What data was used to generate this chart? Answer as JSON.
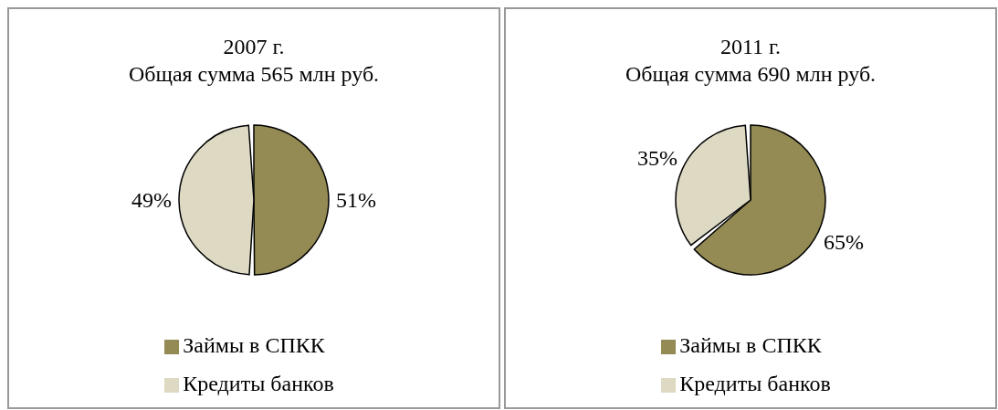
{
  "chart_data": [
    {
      "type": "pie",
      "title": "2007 г.",
      "subtitle": "Общая сумма 565 млн руб.",
      "categories": [
        "Займы в СПКК",
        "Кредиты банков"
      ],
      "values": [
        51,
        49
      ],
      "colors": [
        "#948a54",
        "#ddd9c3"
      ],
      "value_labels": [
        "51%",
        "49%"
      ],
      "legend": "bottom"
    },
    {
      "type": "pie",
      "title": "2011 г.",
      "subtitle": "Общая сумма 690 млн руб.",
      "categories": [
        "Займы в СПКК",
        "Кредиты банков"
      ],
      "values": [
        65,
        35
      ],
      "colors": [
        "#948a54",
        "#ddd9c3"
      ],
      "value_labels": [
        "65%",
        "35%"
      ],
      "legend": "bottom"
    }
  ]
}
